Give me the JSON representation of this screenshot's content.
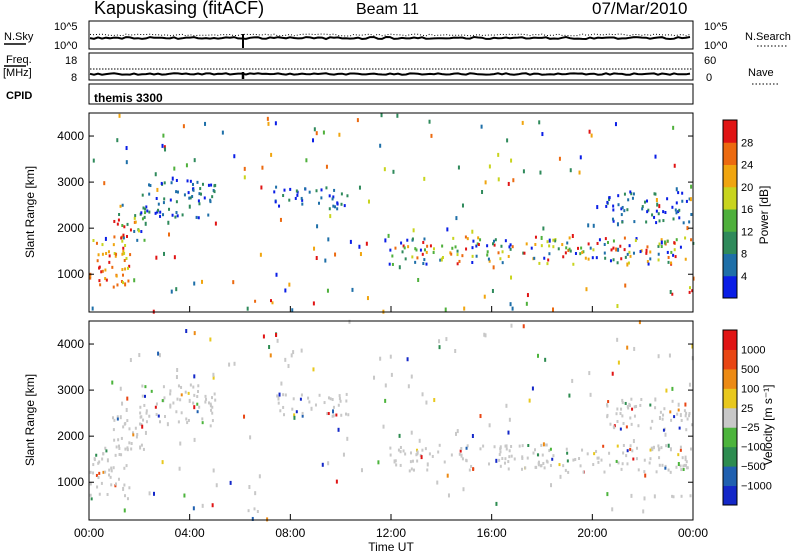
{
  "header": {
    "station": "Kapuskasing (fitACF)",
    "beam": "Beam 11",
    "date": "07/Mar/2010"
  },
  "noise_panel": {
    "left_label": "N.Sky",
    "right_label": "N.Search",
    "left_ticks": [
      "10^5",
      "10^0"
    ],
    "right_ticks": [
      "10^5",
      "10^0"
    ]
  },
  "freq_panel": {
    "left_label": "Freq.",
    "left_unit": "[MHz]",
    "right_label": "Nave",
    "left_ticks": [
      "18",
      "8"
    ],
    "right_ticks": [
      "60",
      "0"
    ]
  },
  "cpid_panel": {
    "label": "CPID",
    "value": "themis 3300"
  },
  "chart_data": [
    {
      "type": "heatmap",
      "name": "power",
      "ylabel": "Slant Range [km]",
      "xlabel": "Time UT",
      "ylim": [
        180,
        4500
      ],
      "y_ticks": [
        "1000",
        "2000",
        "3000",
        "4000"
      ],
      "x_ticks": [
        "00:00",
        "04:00",
        "08:00",
        "12:00",
        "16:00",
        "20:00",
        "00:00"
      ],
      "xlim_hours": [
        0,
        24
      ],
      "colorbar": {
        "label": "Power [dB]",
        "ticks": [
          "4",
          "8",
          "12",
          "16",
          "20",
          "24",
          "28"
        ],
        "colors": [
          "#0a1ee6",
          "#1e6fa8",
          "#2f8a5b",
          "#4fb03c",
          "#c8d41e",
          "#f0a50f",
          "#ec6a10",
          "#e01414"
        ]
      },
      "echo_regions": [
        {
          "t0": 0.0,
          "t1": 1.6,
          "r0": 600,
          "r1": 1800,
          "level": "high"
        },
        {
          "t0": 0.8,
          "t1": 2.2,
          "r0": 1700,
          "r1": 2500,
          "level": "mixed"
        },
        {
          "t0": 2.0,
          "t1": 5.0,
          "r0": 2200,
          "r1": 3100,
          "level": "low"
        },
        {
          "t0": 6.0,
          "t1": 7.3,
          "r0": 320,
          "r1": 420,
          "level": "high"
        },
        {
          "t0": 7.3,
          "t1": 10.3,
          "r0": 2400,
          "r1": 2900,
          "level": "low"
        },
        {
          "t0": 11.9,
          "t1": 24.0,
          "r0": 1200,
          "r1": 1800,
          "level": "mixed"
        },
        {
          "t0": 20.5,
          "t1": 24.0,
          "r0": 2100,
          "r1": 2800,
          "level": "low"
        },
        {
          "t0": 23.0,
          "t1": 24.0,
          "r0": 550,
          "r1": 700,
          "level": "high"
        }
      ]
    },
    {
      "type": "heatmap",
      "name": "velocity",
      "ylabel": "Slant Range [km]",
      "xlabel": "Time UT",
      "ylim": [
        180,
        4500
      ],
      "y_ticks": [
        "1000",
        "2000",
        "3000",
        "4000"
      ],
      "x_ticks": [
        "00:00",
        "04:00",
        "08:00",
        "12:00",
        "16:00",
        "20:00",
        "00:00"
      ],
      "xlim_hours": [
        0,
        24
      ],
      "colorbar": {
        "label": "Velocity [m s⁻¹]",
        "ticks": [
          "1000",
          "500",
          "100",
          "25",
          "−25",
          "−100",
          "−500",
          "−1000"
        ],
        "colors": [
          "#1428c8",
          "#2060b0",
          "#2d8c50",
          "#4cb43c",
          "#c8c8c8",
          "#e8c81e",
          "#ec8a14",
          "#e84614",
          "#e01414"
        ]
      },
      "ground_scatter_color": "#c8c8c8"
    }
  ]
}
